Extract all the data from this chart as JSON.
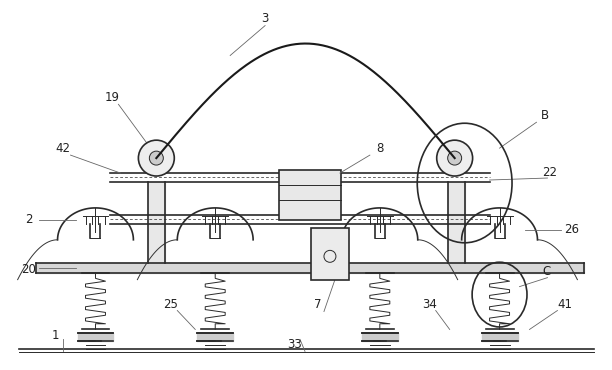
{
  "bg_color": "#ffffff",
  "line_color": "#2a2a2a",
  "fig_width": 6.12,
  "fig_height": 3.7,
  "dpi": 100
}
